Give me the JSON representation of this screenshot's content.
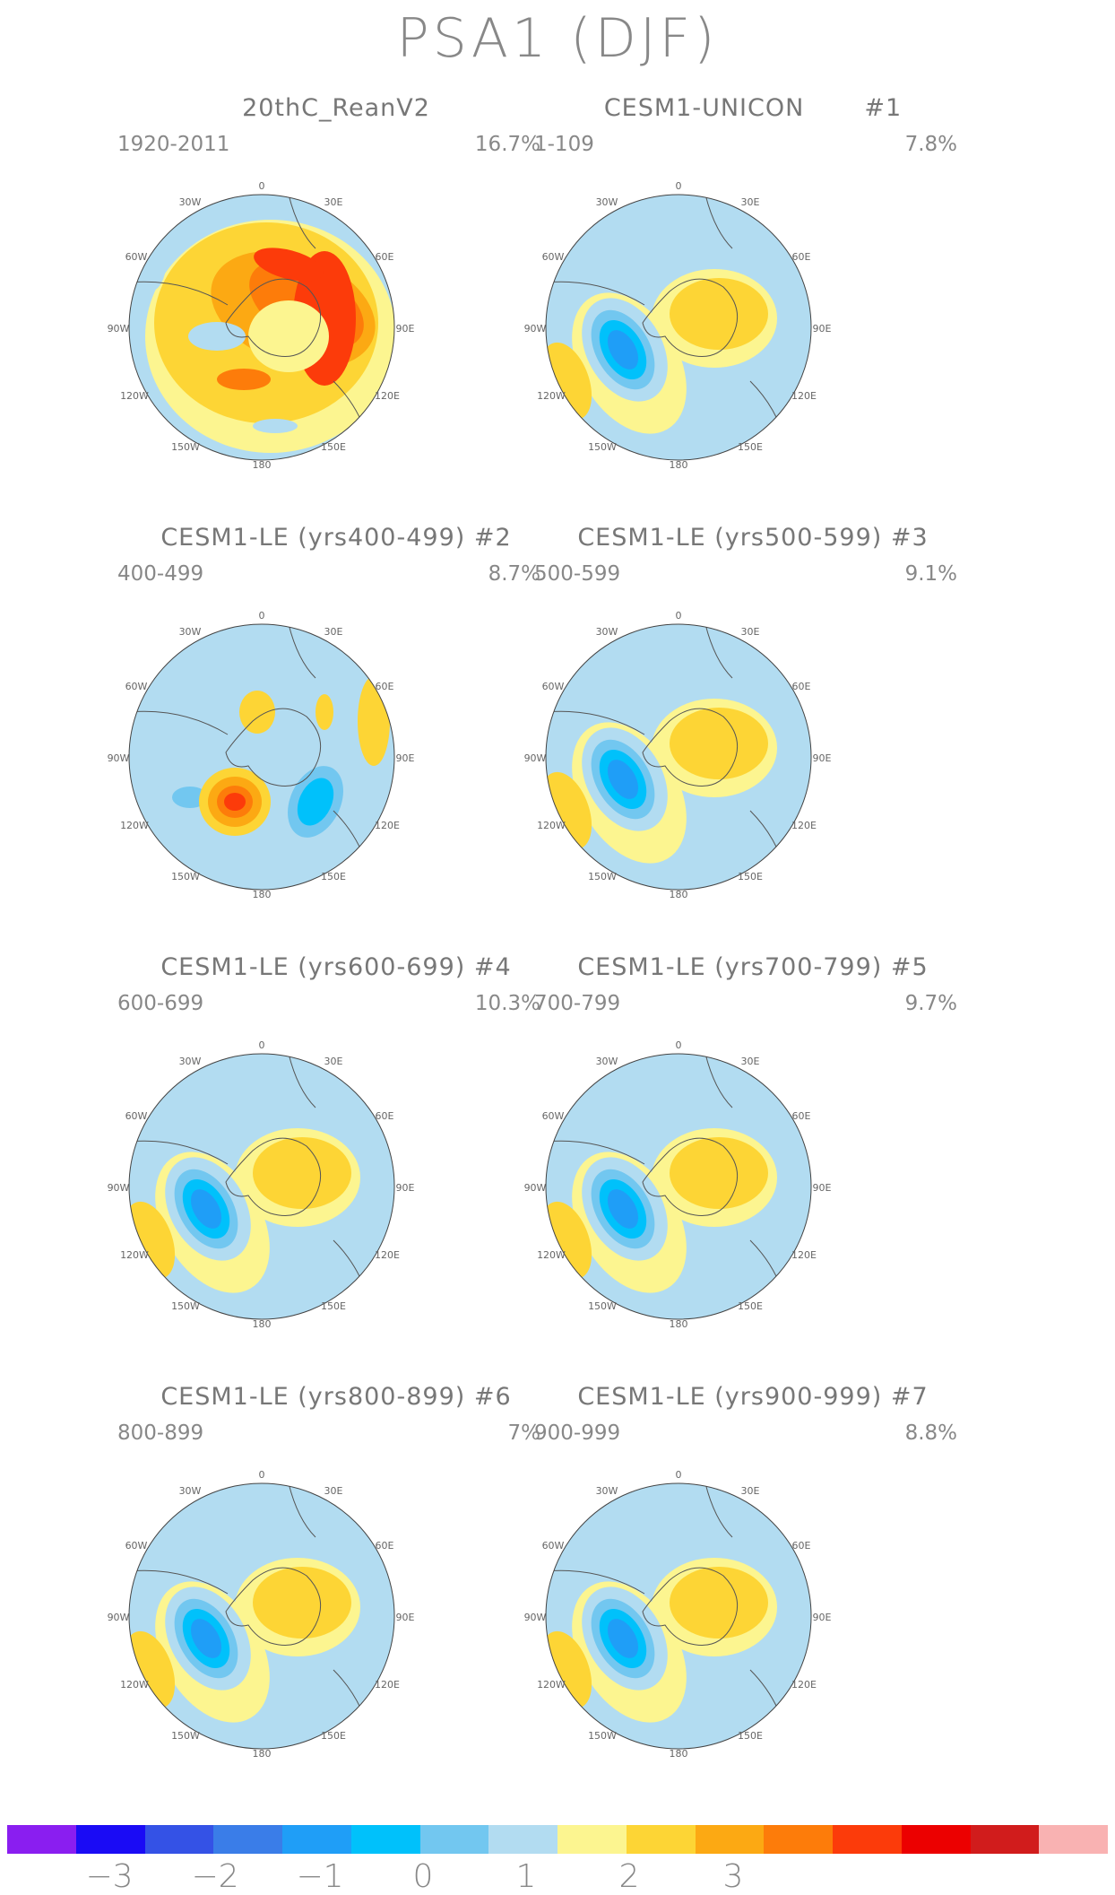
{
  "title": "PSA1 (DJF)",
  "colors": [
    "#8a1ef0",
    "#1a0bf5",
    "#3452e6",
    "#3a7de8",
    "#1f9ef7",
    "#00c1fb",
    "#72c7f0",
    "#b2dcf1",
    "#fcf590",
    "#fdd535",
    "#fca913",
    "#fd7c0a",
    "#fc3b0a",
    "#ec0000",
    "#d11c1c",
    "#f9b2b2"
  ],
  "colorbar": {
    "labels": [
      "−3",
      "−2",
      "−1",
      "0",
      "1",
      "2",
      "3"
    ]
  },
  "lon_labels": [
    "0",
    "30E",
    "60E",
    "90E",
    "120E",
    "150E",
    "180",
    "150W",
    "120W",
    "90W",
    "60W",
    "30W"
  ],
  "panels": [
    {
      "title": "20thC_ReanV2",
      "years": "1920-2011",
      "pct": "16.7%",
      "pattern": "rean"
    },
    {
      "title": "CESM1-UNICON       #1",
      "years": "1-109",
      "pct": "7.8%",
      "pattern": "std"
    },
    {
      "title": "CESM1-LE (yrs400-499) #2",
      "years": "400-499",
      "pct": "8.7%",
      "pattern": "p2"
    },
    {
      "title": "CESM1-LE (yrs500-599) #3",
      "years": "500-599",
      "pct": "9.1%",
      "pattern": "std"
    },
    {
      "title": "CESM1-LE (yrs600-699) #4",
      "years": "600-699",
      "pct": "10.3%",
      "pattern": "std"
    },
    {
      "title": "CESM1-LE (yrs700-799) #5",
      "years": "700-799",
      "pct": "9.7%",
      "pattern": "std"
    },
    {
      "title": "CESM1-LE (yrs800-899) #6",
      "years": "800-899",
      "pct": "7%",
      "pattern": "std"
    },
    {
      "title": "CESM1-LE (yrs900-999) #7",
      "years": "900-999",
      "pct": "8.8%",
      "pattern": "std"
    }
  ]
}
